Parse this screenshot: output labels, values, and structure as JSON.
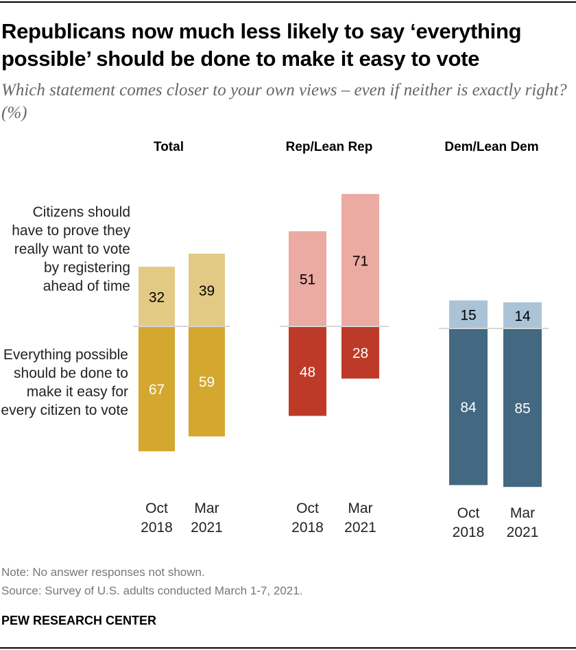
{
  "title": "Republicans now much less likely to say ‘everything possible’ should be done to make it easy to vote",
  "subtitle": "Which statement comes closer to your own views – even if neither is exactly right? (%)",
  "chart_data": {
    "type": "bar",
    "stacked": "diverging",
    "groups": [
      "Total",
      "Rep/Lean Rep",
      "Dem/Lean Dem"
    ],
    "categories": [
      "Oct\n2018",
      "Mar\n2021"
    ],
    "series": [
      {
        "name": "Citizens should have to prove they really want to vote by registering ahead of time",
        "values": [
          [
            32,
            39
          ],
          [
            51,
            71
          ],
          [
            15,
            14
          ]
        ]
      },
      {
        "name": "Everything possible should be done to make it easy for every citizen to vote",
        "values": [
          [
            67,
            59
          ],
          [
            48,
            28
          ],
          [
            84,
            85
          ]
        ]
      }
    ],
    "colors": {
      "Total": [
        "#E2CA85",
        "#D4A72F"
      ],
      "Rep/Lean Rep": [
        "#EBAAA2",
        "#BE3A28"
      ],
      "Dem/Lean Dem": [
        "#ABC3D6",
        "#436882"
      ]
    },
    "label_colors": {
      "upper": "#000000",
      "lower": "#FFFFFF"
    }
  },
  "notes": {
    "note": "Note: No answer responses not shown.",
    "source": "Source: Survey of U.S. adults conducted March 1-7, 2021.",
    "brand": "PEW RESEARCH CENTER"
  }
}
